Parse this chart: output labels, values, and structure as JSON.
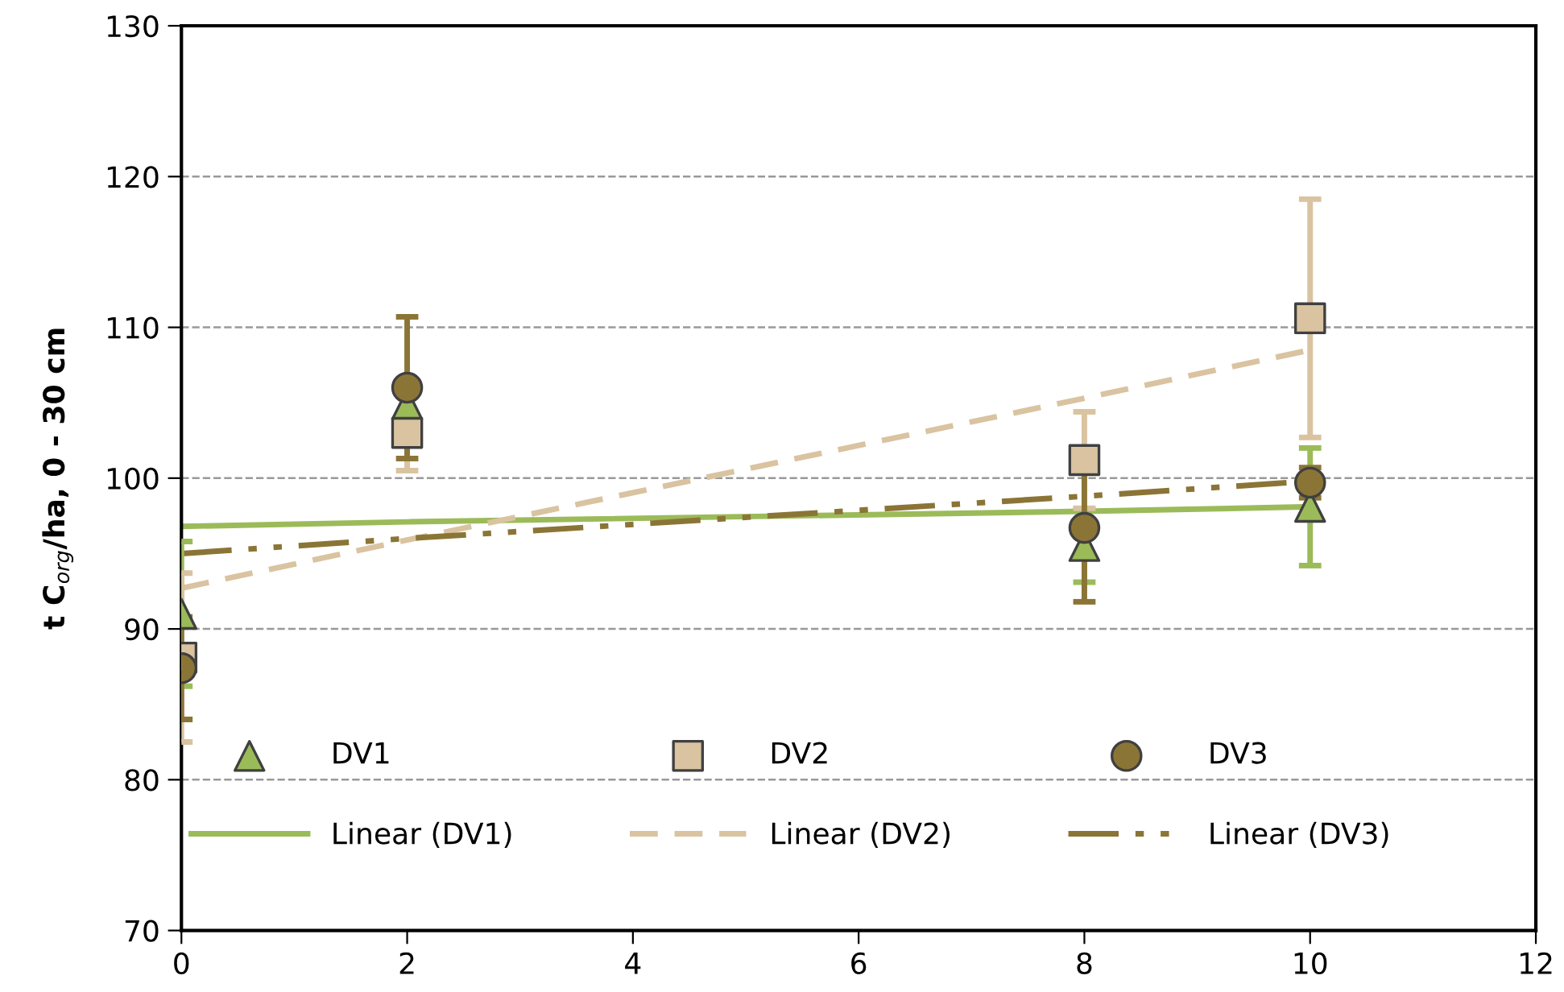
{
  "chart_data": {
    "type": "scatter",
    "ylabel": "t C$_{org}$/ha, 0 - 30 cm",
    "x": [
      0,
      2,
      8,
      10
    ],
    "series": [
      {
        "name": "DV1",
        "marker": "triangle",
        "color": "#9bbb59",
        "values": [
          91.0,
          104.9,
          95.5,
          98.1
        ],
        "errors": [
          4.8,
          1.0,
          2.4,
          3.9
        ]
      },
      {
        "name": "DV2",
        "marker": "square",
        "color": "#d9c3a0",
        "values": [
          88.1,
          103.0,
          101.2,
          110.6
        ],
        "errors": [
          5.6,
          2.5,
          3.2,
          7.9
        ]
      },
      {
        "name": "DV3",
        "marker": "circle",
        "color": "#8b7536",
        "values": [
          87.4,
          106.0,
          96.7,
          99.7
        ],
        "errors": [
          3.4,
          4.7,
          4.9,
          1.0
        ]
      },
      {
        "name": "Linear (DV1)",
        "type": "line",
        "marker": "none",
        "line_style": "solid",
        "color": "#9bbb59",
        "values": [
          96.8,
          97.1,
          97.8,
          98.1
        ]
      },
      {
        "name": "Linear (DV2)",
        "type": "line",
        "marker": "none",
        "line_style": "dashed",
        "color": "#d9c3a0",
        "values": [
          92.7,
          95.9,
          105.3,
          108.5
        ]
      },
      {
        "name": "Linear (DV3)",
        "type": "line",
        "marker": "none",
        "line_style": "dashdotdot",
        "color": "#8b7536",
        "values": [
          95.0,
          96.0,
          98.8,
          99.8
        ]
      }
    ],
    "xlim": [
      0,
      12
    ],
    "xticks": [
      0,
      2,
      4,
      6,
      8,
      10,
      12
    ],
    "ylim": [
      70,
      130
    ],
    "yticks": [
      70,
      80,
      90,
      100,
      110,
      120,
      130
    ],
    "grid": "y",
    "legend": "bottom"
  }
}
